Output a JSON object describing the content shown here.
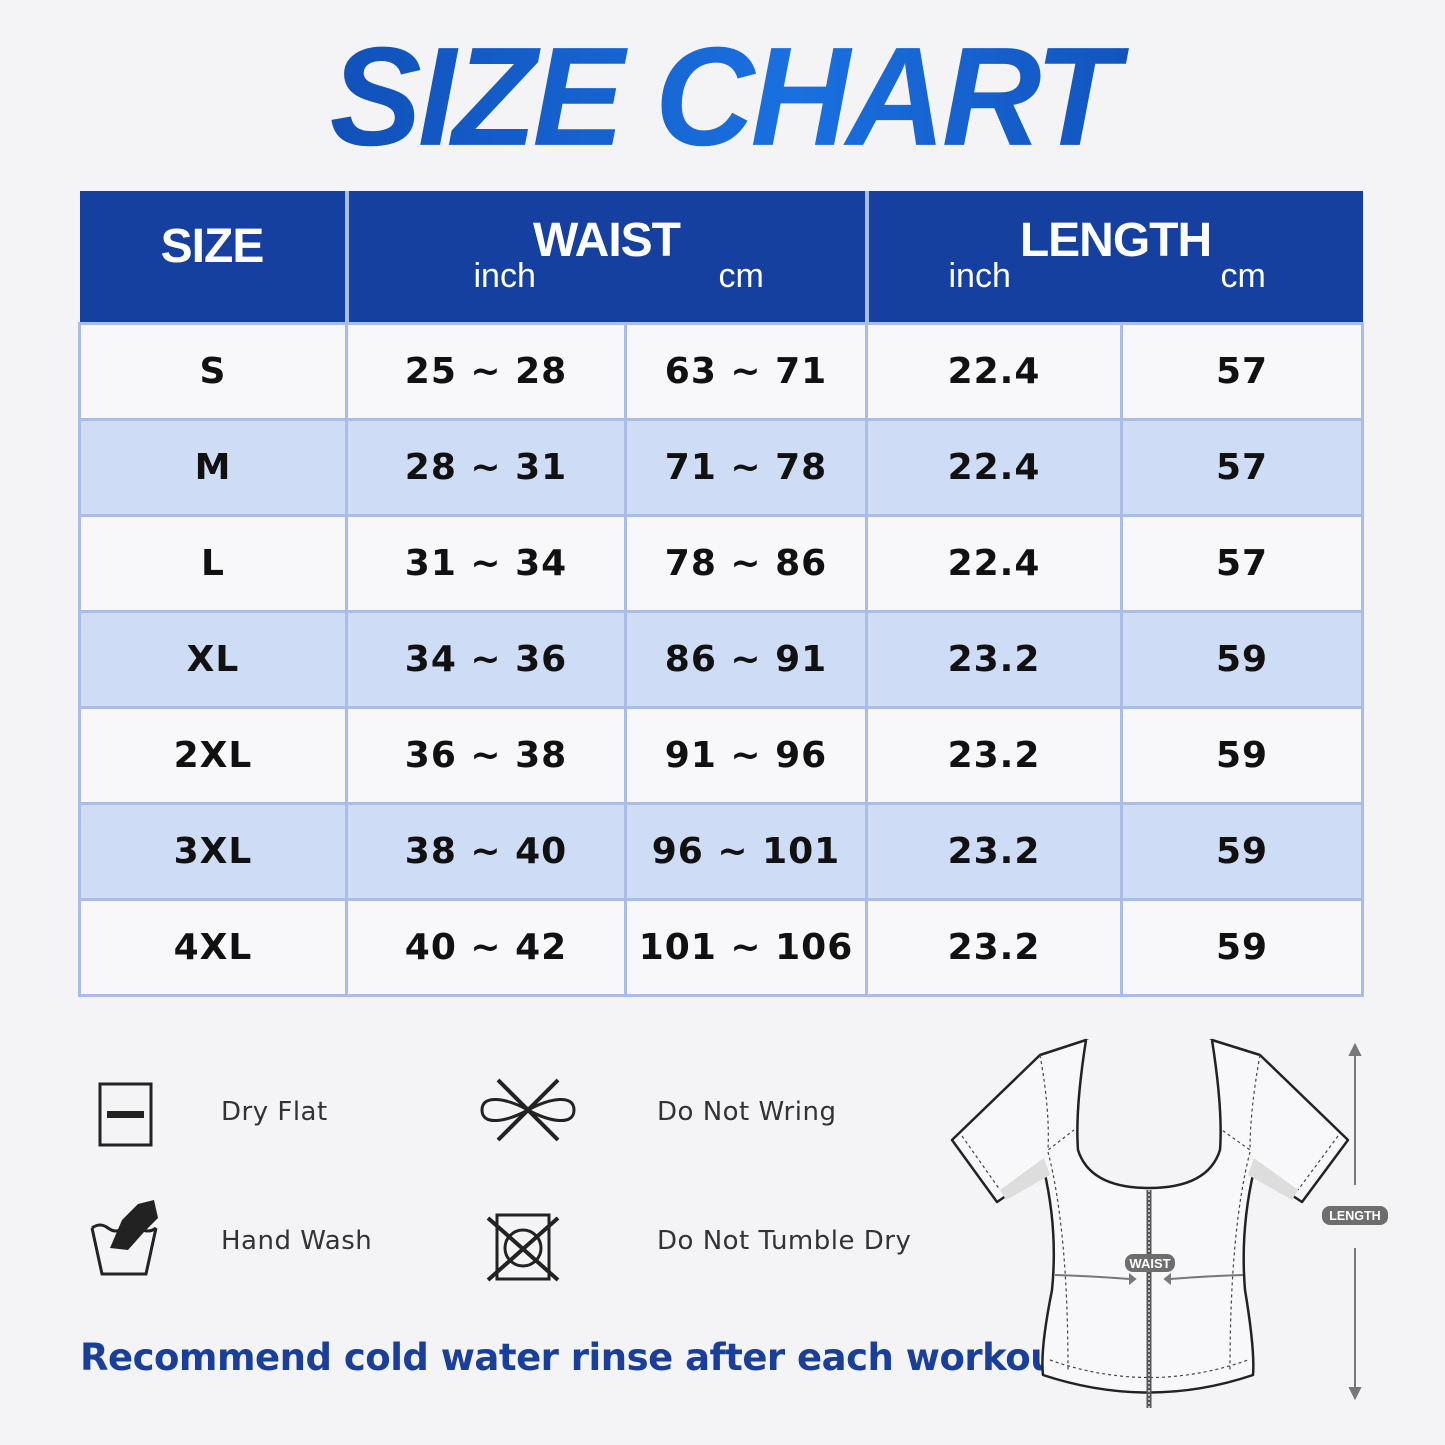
{
  "title": "SIZE CHART",
  "table": {
    "headers": {
      "size": "SIZE",
      "waist": {
        "label": "WAIST",
        "unit_inch": "inch",
        "unit_cm": "cm"
      },
      "length": {
        "label": "LENGTH",
        "unit_inch": "inch",
        "unit_cm": "cm"
      }
    },
    "rows": [
      {
        "size": "S",
        "waist_inch": "25 ~ 28",
        "waist_cm": "63 ~ 71",
        "length_inch": "22.4",
        "length_cm": "57"
      },
      {
        "size": "M",
        "waist_inch": "28 ~ 31",
        "waist_cm": "71 ~ 78",
        "length_inch": "22.4",
        "length_cm": "57"
      },
      {
        "size": "L",
        "waist_inch": "31 ~ 34",
        "waist_cm": "78 ~ 86",
        "length_inch": "22.4",
        "length_cm": "57"
      },
      {
        "size": "XL",
        "waist_inch": "34 ~ 36",
        "waist_cm": "86 ~ 91",
        "length_inch": "23.2",
        "length_cm": "59"
      },
      {
        "size": "2XL",
        "waist_inch": "36 ~ 38",
        "waist_cm": "91 ~ 96",
        "length_inch": "23.2",
        "length_cm": "59"
      },
      {
        "size": "3XL",
        "waist_inch": "38 ~ 40",
        "waist_cm": "96 ~ 101",
        "length_inch": "23.2",
        "length_cm": "59"
      },
      {
        "size": "4XL",
        "waist_inch": "40 ~ 42",
        "waist_cm": "101 ~ 106",
        "length_inch": "23.2",
        "length_cm": "59"
      }
    ]
  },
  "care": {
    "dry_flat": {
      "label": "Dry Flat",
      "icon": "dry-flat-icon"
    },
    "do_not_wring": {
      "label": "Do Not Wring",
      "icon": "do-not-wring-icon"
    },
    "hand_wash": {
      "label": "Hand Wash",
      "icon": "hand-wash-icon"
    },
    "do_not_tumble_dry": {
      "label": "Do Not Tumble Dry",
      "icon": "do-not-tumble-dry-icon"
    }
  },
  "note": "Recommend cold water rinse after each workout.",
  "diagram": {
    "waist_label": "WAIST",
    "length_label": "LENGTH"
  },
  "colors": {
    "header": "#1540a0",
    "alt_row": "#cfdcf5",
    "note": "#1a3f9a",
    "title": "#0c48b8"
  }
}
